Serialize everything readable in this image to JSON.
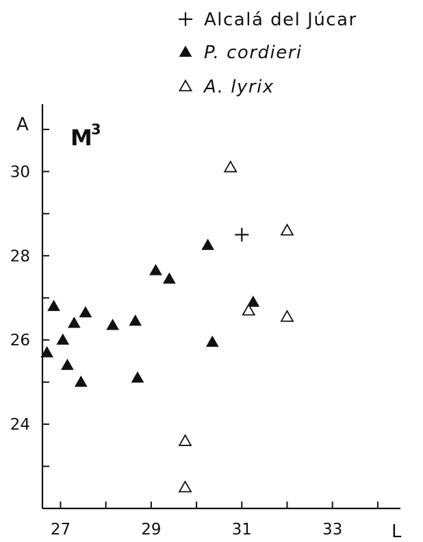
{
  "chart_data": {
    "type": "scatter",
    "title": "M",
    "title_superscript": "3",
    "xlabel": "L",
    "ylabel": "A",
    "xlim": [
      26.6,
      34.5
    ],
    "ylim": [
      22.0,
      31.6
    ],
    "x_ticks": [
      27,
      28,
      29,
      30,
      31,
      32,
      33,
      34
    ],
    "x_tick_labels": [
      "27",
      "",
      "29",
      "",
      "31",
      "",
      "33",
      ""
    ],
    "y_ticks": [
      23,
      24,
      25,
      26,
      27,
      28,
      29,
      30,
      31
    ],
    "y_tick_labels": [
      "",
      "24",
      "",
      "26",
      "",
      "28",
      "",
      "30",
      ""
    ],
    "grid": false,
    "legend_position": "top-right",
    "series": [
      {
        "name": "Alcalá del Júcar",
        "marker": "plus",
        "points": [
          [
            31.0,
            28.5
          ]
        ]
      },
      {
        "name": "P. cordieri",
        "marker": "filled-triangle",
        "points": [
          [
            26.7,
            25.7
          ],
          [
            26.85,
            26.8
          ],
          [
            27.05,
            26.0
          ],
          [
            27.15,
            25.4
          ],
          [
            27.3,
            26.4
          ],
          [
            27.45,
            25.0
          ],
          [
            27.55,
            26.65
          ],
          [
            28.15,
            26.35
          ],
          [
            28.65,
            26.45
          ],
          [
            28.7,
            25.1
          ],
          [
            29.1,
            27.65
          ],
          [
            29.4,
            27.45
          ],
          [
            30.25,
            28.25
          ],
          [
            30.35,
            25.95
          ],
          [
            31.25,
            26.9
          ]
        ]
      },
      {
        "name": "A. lyrix",
        "marker": "open-triangle",
        "points": [
          [
            29.75,
            23.6
          ],
          [
            29.75,
            22.5
          ],
          [
            30.75,
            30.1
          ],
          [
            31.15,
            26.7
          ],
          [
            32.0,
            28.6
          ],
          [
            32.0,
            26.55
          ]
        ]
      }
    ]
  }
}
